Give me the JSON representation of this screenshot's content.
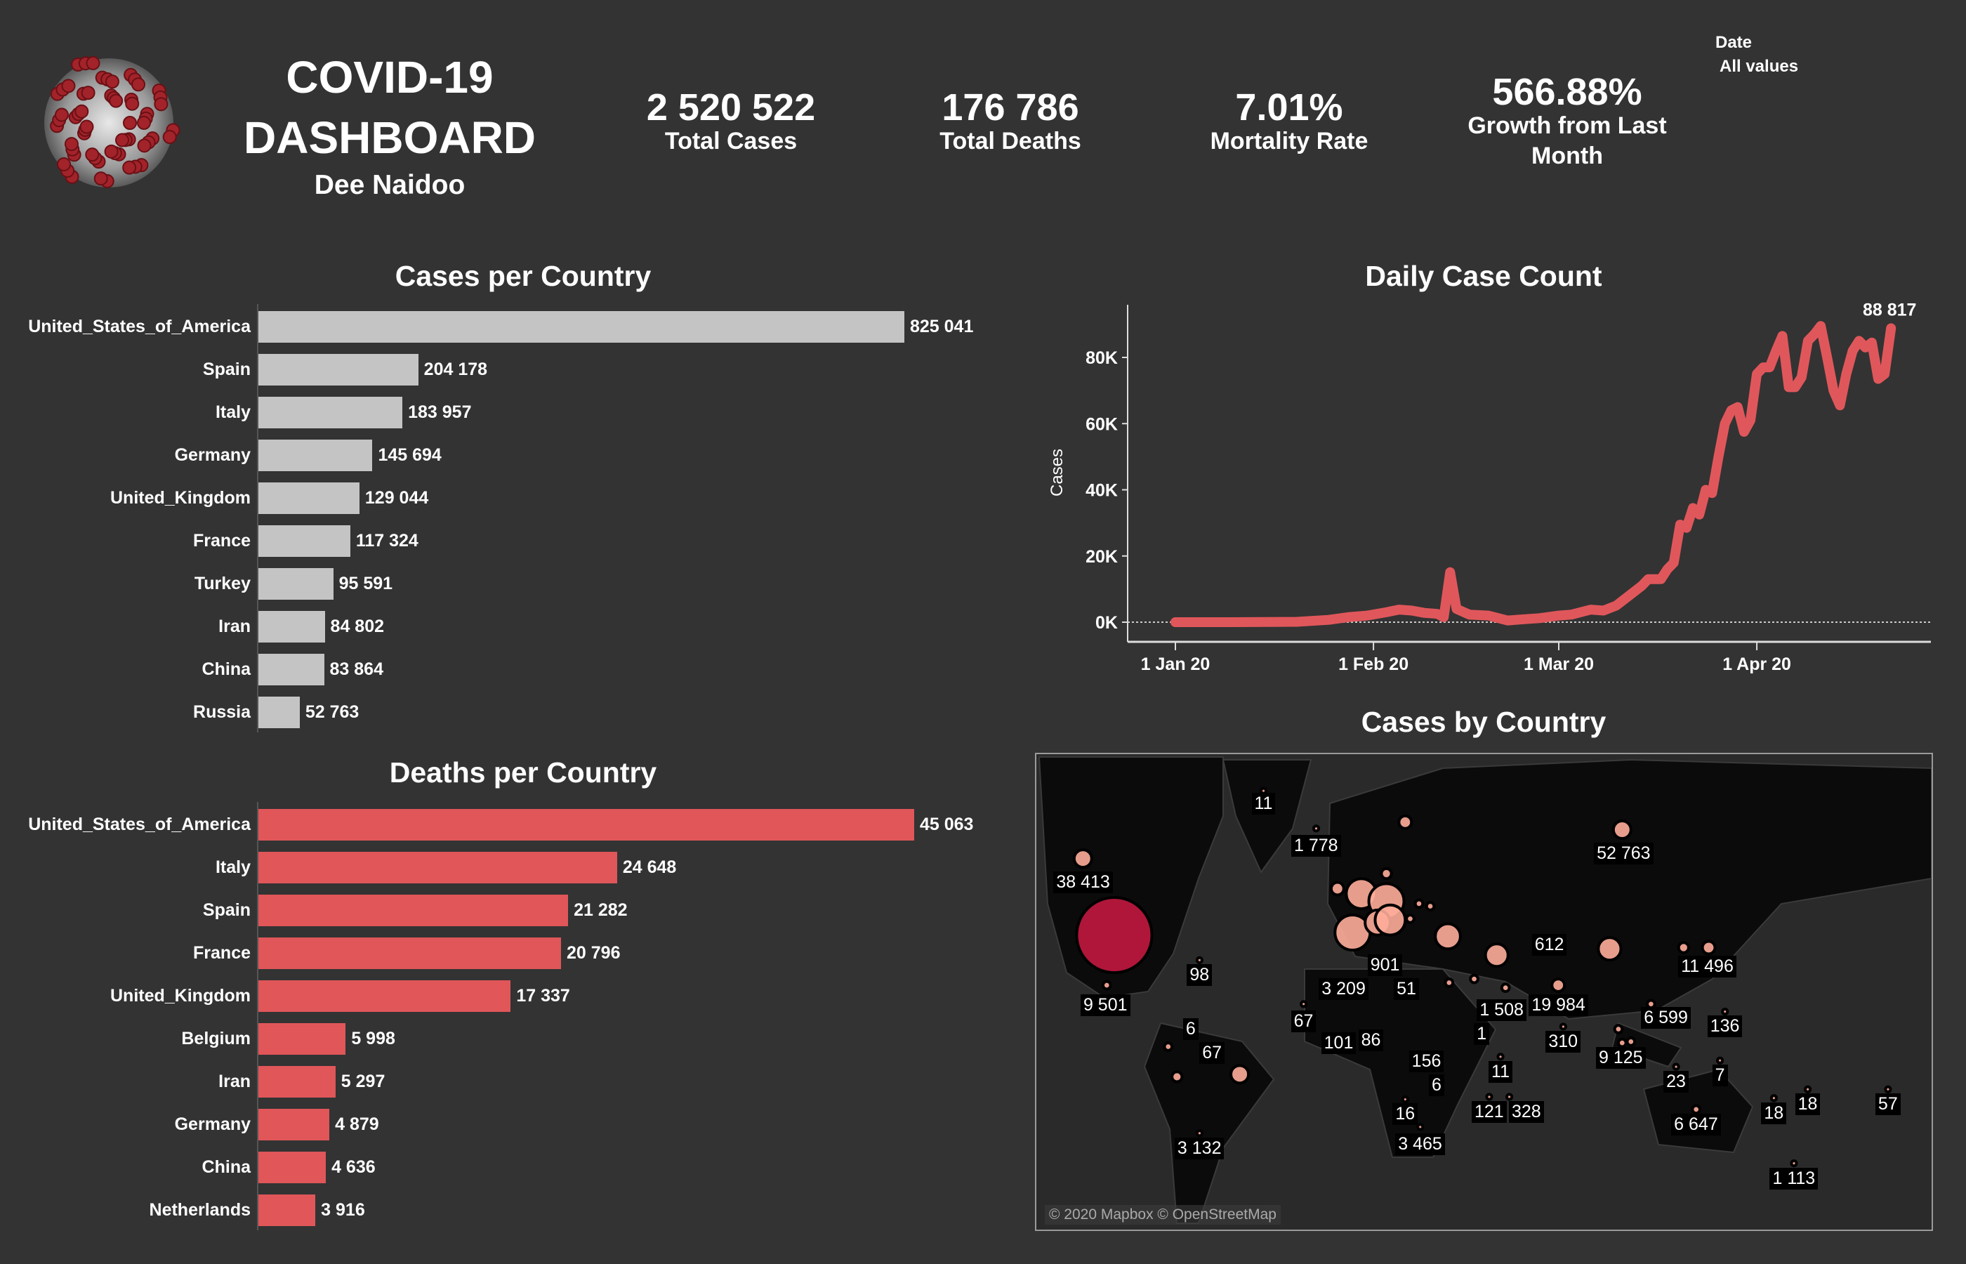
{
  "header": {
    "title_line1": "COVID-19",
    "title_line2": "DASHBOARD",
    "author": "Dee Naidoo",
    "logo": "coronavirus-image"
  },
  "kpis": [
    {
      "value": "2 520 522",
      "label": "Total Cases"
    },
    {
      "value": "176 786",
      "label": "Total Deaths"
    },
    {
      "value": "7.01%",
      "label": "Mortality Rate"
    },
    {
      "value": "566.88%",
      "label_line1": "Growth from Last",
      "label_line2": "Month"
    }
  ],
  "filter": {
    "label": "Date",
    "value": "All values"
  },
  "colors": {
    "background": "#333333",
    "cases_bar": "#c4c4c4",
    "deaths_bar": "#e05659",
    "line": "#e0575b",
    "bubble": "#ffad9a",
    "bubble_max": "#b0163a"
  },
  "chart_data": [
    {
      "type": "bar",
      "title": "Cases per Country",
      "orientation": "horizontal",
      "categories": [
        "United_States_of_America",
        "Spain",
        "Italy",
        "Germany",
        "United_Kingdom",
        "France",
        "Turkey",
        "Iran",
        "China",
        "Russia"
      ],
      "values": [
        825041,
        204178,
        183957,
        145694,
        129044,
        117324,
        95591,
        84802,
        83864,
        52763
      ],
      "labels": [
        "825 041",
        "204 178",
        "183 957",
        "145 694",
        "129 044",
        "117 324",
        "95 591",
        "84 802",
        "83 864",
        "52 763"
      ]
    },
    {
      "type": "bar",
      "title": "Deaths per Country",
      "orientation": "horizontal",
      "categories": [
        "United_States_of_America",
        "Italy",
        "Spain",
        "France",
        "United_Kingdom",
        "Belgium",
        "Iran",
        "Germany",
        "China",
        "Netherlands"
      ],
      "values": [
        45063,
        24648,
        21282,
        20796,
        17337,
        5998,
        5297,
        4879,
        4636,
        3916
      ],
      "labels": [
        "45 063",
        "24 648",
        "21 282",
        "20 796",
        "17 337",
        "5 998",
        "5 297",
        "4 879",
        "4 636",
        "3 916"
      ]
    },
    {
      "type": "line",
      "title": "Daily Case Count",
      "ylabel": "Cases",
      "yticks": [
        "0K",
        "20K",
        "40K",
        "60K",
        "80K"
      ],
      "ylim": [
        0,
        95000
      ],
      "xticks": [
        {
          "date": "2020-01-01",
          "label": "1 Jan 20"
        },
        {
          "date": "2020-02-01",
          "label": "1 Feb 20"
        },
        {
          "date": "2020-03-01",
          "label": "1 Mar 20"
        },
        {
          "date": "2020-04-01",
          "label": "1 Apr 20"
        }
      ],
      "end_label": "88 817",
      "zero_line": "dotted",
      "points": [
        [
          "2020-01-01",
          0
        ],
        [
          "2020-01-10",
          0
        ],
        [
          "2020-01-20",
          100
        ],
        [
          "2020-01-25",
          700
        ],
        [
          "2020-01-28",
          1500
        ],
        [
          "2020-01-31",
          2000
        ],
        [
          "2020-02-03",
          3000
        ],
        [
          "2020-02-05",
          3800
        ],
        [
          "2020-02-07",
          3500
        ],
        [
          "2020-02-09",
          2800
        ],
        [
          "2020-02-11",
          2500
        ],
        [
          "2020-02-12",
          1500
        ],
        [
          "2020-02-13",
          15100
        ],
        [
          "2020-02-14",
          4000
        ],
        [
          "2020-02-16",
          2300
        ],
        [
          "2020-02-19",
          2000
        ],
        [
          "2020-02-22",
          500
        ],
        [
          "2020-02-24",
          800
        ],
        [
          "2020-02-27",
          1200
        ],
        [
          "2020-03-01",
          2000
        ],
        [
          "2020-03-03",
          2300
        ],
        [
          "2020-03-06",
          3800
        ],
        [
          "2020-03-08",
          3500
        ],
        [
          "2020-03-10",
          5000
        ],
        [
          "2020-03-12",
          8000
        ],
        [
          "2020-03-14",
          11000
        ],
        [
          "2020-03-15",
          13000
        ],
        [
          "2020-03-17",
          13000
        ],
        [
          "2020-03-18",
          16000
        ],
        [
          "2020-03-19",
          18000
        ],
        [
          "2020-03-20",
          29500
        ],
        [
          "2020-03-21",
          28500
        ],
        [
          "2020-03-22",
          34500
        ],
        [
          "2020-03-23",
          32500
        ],
        [
          "2020-03-24",
          40000
        ],
        [
          "2020-03-25",
          39000
        ],
        [
          "2020-03-26",
          50000
        ],
        [
          "2020-03-27",
          60000
        ],
        [
          "2020-03-28",
          64000
        ],
        [
          "2020-03-29",
          65000
        ],
        [
          "2020-03-30",
          57500
        ],
        [
          "2020-03-31",
          61000
        ],
        [
          "2020-04-01",
          75000
        ],
        [
          "2020-04-02",
          77000
        ],
        [
          "2020-04-03",
          77000
        ],
        [
          "2020-04-04",
          82000
        ],
        [
          "2020-04-05",
          86500
        ],
        [
          "2020-04-06",
          71000
        ],
        [
          "2020-04-07",
          71000
        ],
        [
          "2020-04-08",
          74000
        ],
        [
          "2020-04-09",
          85000
        ],
        [
          "2020-04-10",
          87000
        ],
        [
          "2020-04-11",
          89500
        ],
        [
          "2020-04-12",
          80000
        ],
        [
          "2020-04-13",
          70000
        ],
        [
          "2020-04-14",
          65500
        ],
        [
          "2020-04-15",
          75000
        ],
        [
          "2020-04-16",
          82000
        ],
        [
          "2020-04-17",
          85000
        ],
        [
          "2020-04-18",
          83000
        ],
        [
          "2020-04-19",
          84500
        ],
        [
          "2020-04-20",
          73500
        ],
        [
          "2020-04-21",
          75000
        ],
        [
          "2020-04-22",
          88817
        ]
      ]
    }
  ],
  "map": {
    "title": "Cases by Country",
    "credit": "© 2020 Mapbox © OpenStreetMap",
    "labels": [
      "11",
      "1 778",
      "52 763",
      "38 413",
      "612",
      "11 496",
      "98",
      "901",
      "3 209",
      "51",
      "9 501",
      "1 508",
      "19 984",
      "67",
      "6 599",
      "136",
      "6",
      "1",
      "101",
      "86",
      "67",
      "310",
      "9 125",
      "156",
      "6",
      "11",
      "23",
      "7",
      "16",
      "121",
      "328",
      "18",
      "18",
      "57",
      "6 647",
      "3 465",
      "3 132",
      "1 113"
    ]
  }
}
